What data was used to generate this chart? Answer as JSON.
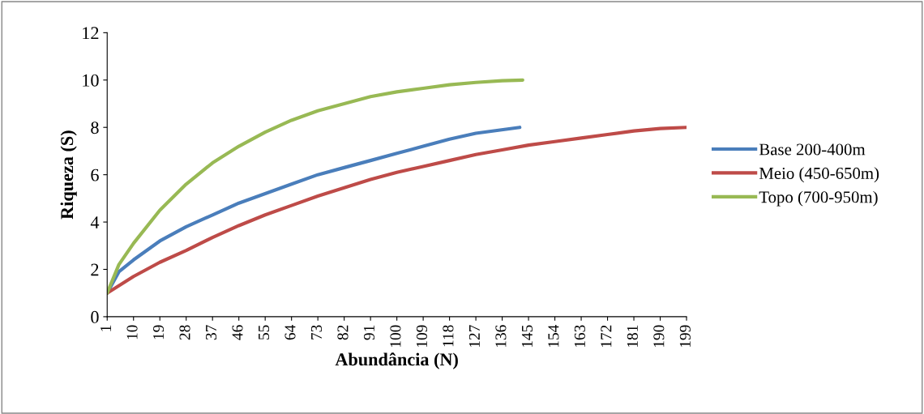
{
  "chart_data": {
    "type": "line",
    "xlabel": "Abundância (N)",
    "ylabel": "Riqueza (S)",
    "xlim": [
      1,
      199
    ],
    "xticks": [
      1,
      10,
      19,
      28,
      37,
      46,
      55,
      64,
      73,
      82,
      91,
      100,
      109,
      118,
      127,
      136,
      145,
      154,
      163,
      172,
      181,
      190,
      199
    ],
    "ylim": [
      0,
      12
    ],
    "yticks": [
      0,
      2,
      4,
      6,
      8,
      10,
      12
    ],
    "grid": false,
    "legend": "right",
    "marker": "none",
    "line_style": "solid",
    "series": [
      {
        "name": "Base 200-400m",
        "color": "#4a7ebb",
        "x": [
          1,
          5,
          10,
          19,
          28,
          37,
          46,
          55,
          64,
          73,
          82,
          91,
          100,
          109,
          118,
          127,
          142
        ],
        "values": [
          1,
          1.9,
          2.4,
          3.2,
          3.8,
          4.3,
          4.8,
          5.2,
          5.6,
          6.0,
          6.3,
          6.6,
          6.9,
          7.2,
          7.5,
          7.75,
          8.0
        ]
      },
      {
        "name": "Meio (450-650m)",
        "color": "#be4b48",
        "x": [
          1,
          10,
          19,
          28,
          37,
          46,
          55,
          64,
          73,
          82,
          91,
          100,
          109,
          118,
          127,
          136,
          145,
          154,
          163,
          172,
          181,
          190,
          199
        ],
        "values": [
          1,
          1.7,
          2.3,
          2.8,
          3.35,
          3.85,
          4.3,
          4.7,
          5.1,
          5.45,
          5.8,
          6.1,
          6.35,
          6.6,
          6.85,
          7.05,
          7.25,
          7.4,
          7.55,
          7.7,
          7.85,
          7.95,
          8.0
        ]
      },
      {
        "name": "Topo (700-950m)",
        "color": "#98b954",
        "x": [
          1,
          5,
          10,
          19,
          28,
          37,
          46,
          55,
          64,
          73,
          82,
          91,
          100,
          109,
          118,
          127,
          136,
          143
        ],
        "values": [
          1,
          2.2,
          3.1,
          4.5,
          5.6,
          6.5,
          7.2,
          7.8,
          8.3,
          8.7,
          9.0,
          9.3,
          9.5,
          9.65,
          9.8,
          9.9,
          9.97,
          10.0
        ]
      }
    ]
  }
}
